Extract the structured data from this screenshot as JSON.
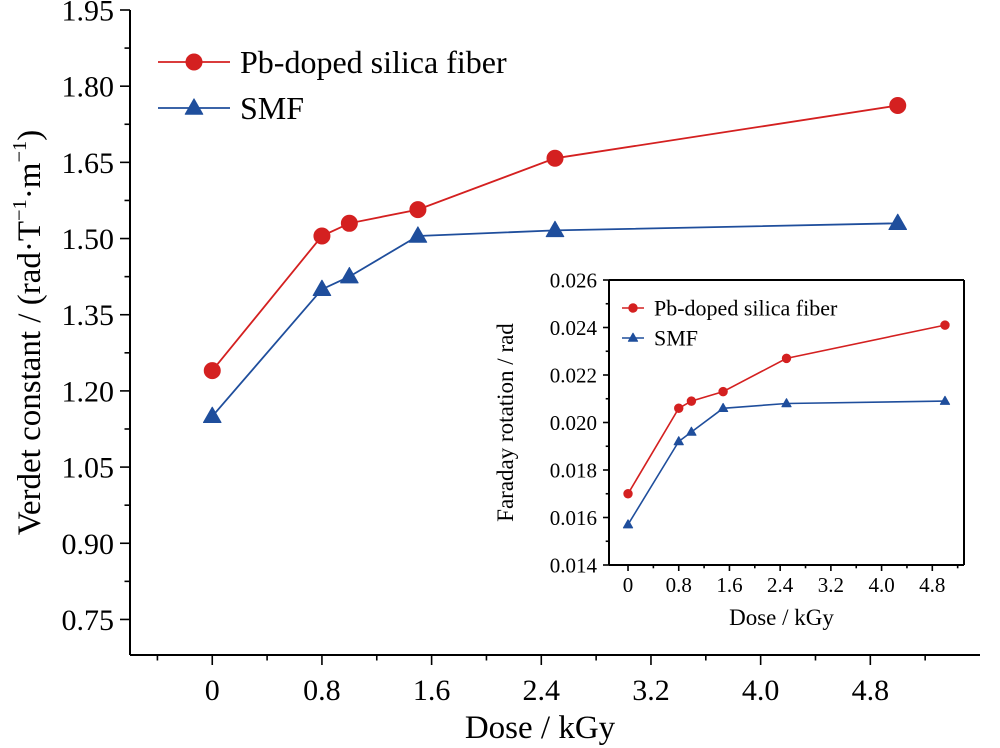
{
  "chart_data": [
    {
      "type": "line",
      "xlabel": "Dose / kGy",
      "ylabel_main": "Verdet constant / (rad·T",
      "ylabel_sup1": "−1",
      "ylabel_mid": "·m",
      "ylabel_sup2": "−1",
      "ylabel_end": ")",
      "xlim": [
        -0.6,
        5.6
      ],
      "ylim": [
        0.68,
        1.95
      ],
      "x_ticks": [
        0,
        0.8,
        1.6,
        2.4,
        3.2,
        4.0,
        4.8
      ],
      "x_tick_labels": [
        "0",
        "0.8",
        "1.6",
        "2.4",
        "3.2",
        "4.0",
        "4.8"
      ],
      "y_ticks": [
        0.75,
        0.9,
        1.05,
        1.2,
        1.35,
        1.5,
        1.65,
        1.8,
        1.95
      ],
      "y_tick_labels": [
        "0.75",
        "0.90",
        "1.05",
        "1.20",
        "1.35",
        "1.50",
        "1.65",
        "1.80",
        "1.95"
      ],
      "legend_position": "top-left",
      "series": [
        {
          "name": "Pb-doped silica fiber",
          "color": "#d42020",
          "marker": "circle",
          "x": [
            0,
            0.8,
            1.0,
            1.5,
            2.5,
            5.0
          ],
          "y": [
            1.24,
            1.505,
            1.53,
            1.557,
            1.658,
            1.762
          ]
        },
        {
          "name": "SMF",
          "color": "#1f4e9c",
          "marker": "triangle",
          "x": [
            0,
            0.8,
            1.0,
            1.5,
            2.5,
            5.0
          ],
          "y": [
            1.15,
            1.4,
            1.425,
            1.505,
            1.516,
            1.53
          ]
        }
      ]
    },
    {
      "type": "line",
      "xlabel": "Dose / kGy",
      "ylabel": "Faraday rotation / rad",
      "xlim": [
        -0.3,
        5.3
      ],
      "ylim": [
        0.014,
        0.026
      ],
      "x_ticks": [
        0,
        0.8,
        1.6,
        2.4,
        3.2,
        4.0,
        4.8
      ],
      "x_tick_labels": [
        "0",
        "0.8",
        "1.6",
        "2.4",
        "3.2",
        "4.0",
        "4.8"
      ],
      "y_ticks": [
        0.014,
        0.016,
        0.018,
        0.02,
        0.022,
        0.024,
        0.026
      ],
      "y_tick_labels": [
        "0.014",
        "0.016",
        "0.018",
        "0.020",
        "0.022",
        "0.024",
        "0.026"
      ],
      "legend_position": "top-left",
      "series": [
        {
          "name": "Pb-doped silica fiber",
          "color": "#d42020",
          "marker": "circle",
          "x": [
            0,
            0.8,
            1.0,
            1.5,
            2.5,
            5.0
          ],
          "y": [
            0.017,
            0.0206,
            0.0209,
            0.0213,
            0.0227,
            0.0241
          ]
        },
        {
          "name": "SMF",
          "color": "#1f4e9c",
          "marker": "triangle",
          "x": [
            0,
            0.8,
            1.0,
            1.5,
            2.5,
            5.0
          ],
          "y": [
            0.0157,
            0.0192,
            0.0196,
            0.0206,
            0.0208,
            0.0209
          ]
        }
      ]
    }
  ]
}
